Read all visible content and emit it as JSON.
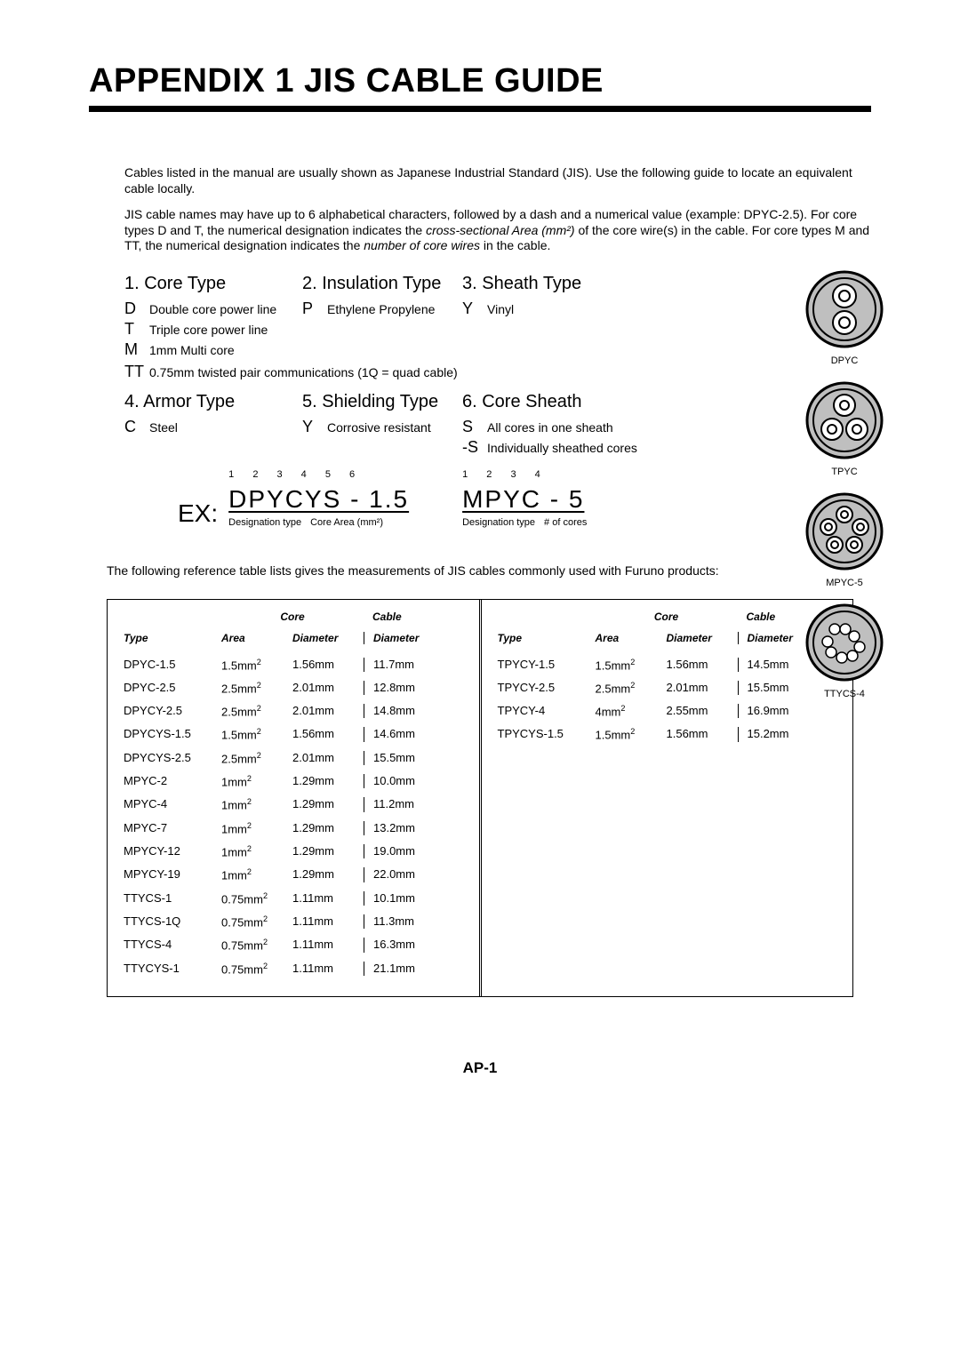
{
  "title": "APPENDIX 1 JIS CABLE GUIDE",
  "intro": {
    "p1": "Cables listed in the manual are usually shown as Japanese Industrial Standard (JIS). Use the following guide to locate an equivalent cable locally.",
    "p2a": "JIS cable names may have up to 6 alphabetical characters, followed by a dash and a numerical value (example: DPYC-2.5). For core types  D and T,  the numerical designation indicates the ",
    "p2em1": "cross-sectional Area (mm²)",
    "p2b": " of the core wire(s) in the cable. For core types M and TT, the numerical designation indicates the ",
    "p2em2": "number of core wires",
    "p2c": " in the cable."
  },
  "legend": {
    "core_type": {
      "heading": "1. Core Type",
      "items": [
        {
          "k": "D",
          "v": "Double core power line"
        },
        {
          "k": "T",
          "v": "Triple core power line"
        },
        {
          "k": "M",
          "v": "1mm Multi core"
        }
      ],
      "tt": {
        "k": "TT",
        "v": "0.75mm twisted pair communications (1Q = quad cable)"
      }
    },
    "insulation": {
      "heading": "2. Insulation Type",
      "items": [
        {
          "k": "P",
          "v": "Ethylene Propylene"
        }
      ]
    },
    "sheath": {
      "heading": "3. Sheath Type",
      "items": [
        {
          "k": "Y",
          "v": "Vinyl"
        }
      ]
    },
    "armor": {
      "heading": "4. Armor Type",
      "items": [
        {
          "k": "C",
          "v": "Steel"
        }
      ]
    },
    "shielding": {
      "heading": "5. Shielding Type",
      "items": [
        {
          "k": "Y",
          "v": "Corrosive resistant"
        }
      ]
    },
    "core_sheath": {
      "heading": "6. Core Sheath",
      "items": [
        {
          "k": "S",
          "v": "All cores in one sheath"
        },
        {
          "k": "-S",
          "v": "Individually sheathed cores"
        }
      ]
    }
  },
  "diagrams": {
    "d1": "DPYC",
    "d2": "TPYC",
    "d3": "MPYC-5",
    "d4": "TTYCS-4"
  },
  "example": {
    "prefix": "EX:",
    "chunk1": {
      "nums": "1  2  3  4  5  6",
      "main": "DPYCYS - 1.5",
      "foot_left": "Designation type",
      "foot_right": "Core Area (mm²)"
    },
    "chunk2": {
      "nums": "1   2  3  4",
      "main": "MPYC - 5",
      "foot_left": "Designation type",
      "foot_right": "# of cores"
    }
  },
  "table_intro": "The following reference table lists gives the measurements of JIS cables commonly used with Furuno products:",
  "table_head": {
    "core_grp": "Core",
    "cable": "Cable",
    "type": "Type",
    "area": "Area",
    "diam": "Diameter",
    "cdiam": "Diameter"
  },
  "left_rows": [
    {
      "type": "DPYC-1.5",
      "area": "1.5mm²",
      "diam": "1.56mm",
      "cdiam": "11.7mm"
    },
    {
      "type": "DPYC-2.5",
      "area": "2.5mm²",
      "diam": "2.01mm",
      "cdiam": "12.8mm"
    },
    {
      "type": "DPYCY-2.5",
      "area": "2.5mm²",
      "diam": "2.01mm",
      "cdiam": "14.8mm"
    },
    {
      "type": "DPYCYS-1.5",
      "area": "1.5mm²",
      "diam": "1.56mm",
      "cdiam": "14.6mm"
    },
    {
      "type": "DPYCYS-2.5",
      "area": "2.5mm²",
      "diam": "2.01mm",
      "cdiam": "15.5mm"
    },
    {
      "type": "MPYC-2",
      "area": "1mm²",
      "diam": "1.29mm",
      "cdiam": "10.0mm"
    },
    {
      "type": "MPYC-4",
      "area": "1mm²",
      "diam": "1.29mm",
      "cdiam": "11.2mm"
    },
    {
      "type": "MPYC-7",
      "area": "1mm²",
      "diam": "1.29mm",
      "cdiam": "13.2mm"
    },
    {
      "type": "MPYCY-12",
      "area": "1mm²",
      "diam": "1.29mm",
      "cdiam": "19.0mm"
    },
    {
      "type": "MPYCY-19",
      "area": "1mm²",
      "diam": "1.29mm",
      "cdiam": "22.0mm"
    },
    {
      "type": "TTYCS-1",
      "area": "0.75mm²",
      "diam": "1.11mm",
      "cdiam": "10.1mm"
    },
    {
      "type": "TTYCS-1Q",
      "area": "0.75mm²",
      "diam": "1.11mm",
      "cdiam": "11.3mm"
    },
    {
      "type": "TTYCS-4",
      "area": "0.75mm²",
      "diam": "1.11mm",
      "cdiam": "16.3mm"
    },
    {
      "type": "TTYCYS-1",
      "area": "0.75mm²",
      "diam": "1.11mm",
      "cdiam": "21.1mm"
    }
  ],
  "right_rows": [
    {
      "type": "TPYCY-1.5",
      "area": "1.5mm²",
      "diam": "1.56mm",
      "cdiam": "14.5mm"
    },
    {
      "type": "TPYCY-2.5",
      "area": "2.5mm²",
      "diam": "2.01mm",
      "cdiam": "15.5mm"
    },
    {
      "type": "TPYCY-4",
      "area": "4mm²",
      "diam": "2.55mm",
      "cdiam": "16.9mm"
    },
    {
      "type": "TPYCYS-1.5",
      "area": "1.5mm²",
      "diam": "1.56mm",
      "cdiam": "15.2mm"
    }
  ],
  "footer": "AP-1",
  "colors": {
    "text": "#000000",
    "bg": "#ffffff",
    "cable_fill": "#bfbfbf",
    "cable_inner": "#ffffff",
    "cable_stroke": "#000000"
  }
}
